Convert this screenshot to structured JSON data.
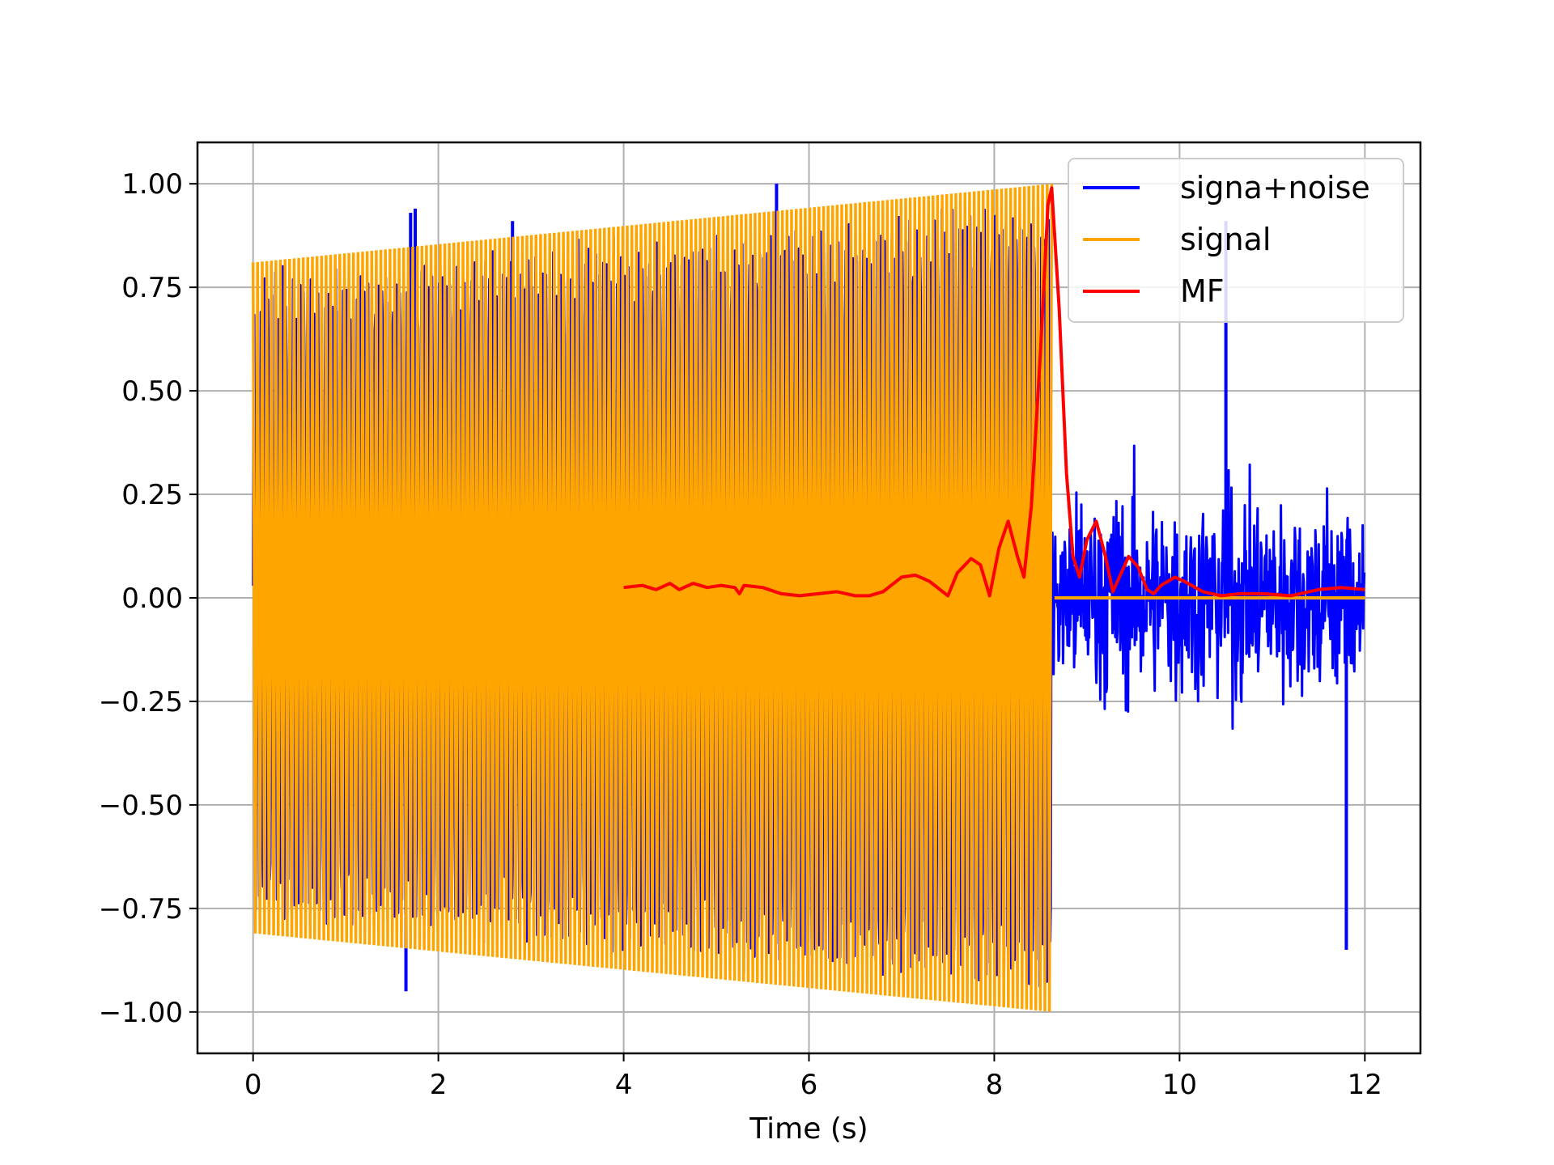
{
  "chart_data": {
    "type": "line",
    "title": "",
    "xlabel": "Time (s)",
    "ylabel": "",
    "xlim": [
      -0.6,
      12.6
    ],
    "ylim": [
      -1.1,
      1.1
    ],
    "grid": true,
    "legend_position": "top-right",
    "x_ticks": [
      0,
      2,
      4,
      6,
      8,
      10,
      12
    ],
    "x_tick_labels": [
      "0",
      "2",
      "4",
      "6",
      "8",
      "10",
      "12"
    ],
    "y_ticks": [
      1.0,
      0.75,
      0.5,
      0.25,
      0.0,
      -0.25,
      -0.5,
      -0.75,
      -1.0
    ],
    "y_tick_labels": [
      "1.00",
      "0.75",
      "0.50",
      "0.25",
      "0.00",
      "−0.25",
      "−0.50",
      "−0.75",
      "−1.00"
    ],
    "series": [
      {
        "name": "signa+noise",
        "color": "#0000ff",
        "description_x_range": [
          0,
          12
        ],
        "noise_amplitude_after_signal": 0.65,
        "spikes": [
          {
            "x": 1.65,
            "y": -0.95
          },
          {
            "x": 1.7,
            "y": 0.93
          },
          {
            "x": 1.75,
            "y": 0.94
          },
          {
            "x": 2.8,
            "y": 0.91
          },
          {
            "x": 5.65,
            "y": 1.0
          },
          {
            "x": 10.5,
            "y": 0.91
          },
          {
            "x": 11.8,
            "y": -0.85
          }
        ]
      },
      {
        "name": "signal",
        "color": "#ffa500",
        "x_range": [
          0,
          8.62
        ],
        "envelope_start": 0.81,
        "envelope_end": 1.0,
        "zero_after": [
          8.65,
          12
        ]
      },
      {
        "name": "MF",
        "color": "#ff0000",
        "x": [
          4.0,
          4.2,
          4.35,
          4.5,
          4.6,
          4.75,
          4.9,
          5.05,
          5.2,
          5.25,
          5.3,
          5.5,
          5.7,
          5.9,
          6.1,
          6.3,
          6.5,
          6.65,
          6.8,
          7.0,
          7.15,
          7.3,
          7.5,
          7.6,
          7.75,
          7.85,
          7.95,
          8.05,
          8.15,
          8.25,
          8.32,
          8.4,
          8.5,
          8.58,
          8.62,
          8.7,
          8.78,
          8.85,
          8.92,
          9.0,
          9.1,
          9.2,
          9.28,
          9.35,
          9.45,
          9.55,
          9.65,
          9.72,
          9.8,
          9.95,
          10.05,
          10.25,
          10.45,
          10.65,
          10.9,
          11.2,
          11.5,
          11.75,
          12.0
        ],
        "y": [
          0.025,
          0.03,
          0.02,
          0.035,
          0.02,
          0.035,
          0.025,
          0.03,
          0.025,
          0.01,
          0.03,
          0.025,
          0.01,
          0.005,
          0.01,
          0.015,
          0.005,
          0.005,
          0.015,
          0.05,
          0.055,
          0.04,
          0.005,
          0.06,
          0.095,
          0.08,
          0.005,
          0.12,
          0.185,
          0.1,
          0.05,
          0.22,
          0.6,
          0.95,
          0.99,
          0.7,
          0.3,
          0.1,
          0.05,
          0.14,
          0.185,
          0.1,
          0.015,
          0.05,
          0.1,
          0.075,
          0.02,
          0.01,
          0.03,
          0.05,
          0.04,
          0.015,
          0.005,
          0.01,
          0.01,
          0.005,
          0.02,
          0.025,
          0.02
        ]
      }
    ]
  }
}
